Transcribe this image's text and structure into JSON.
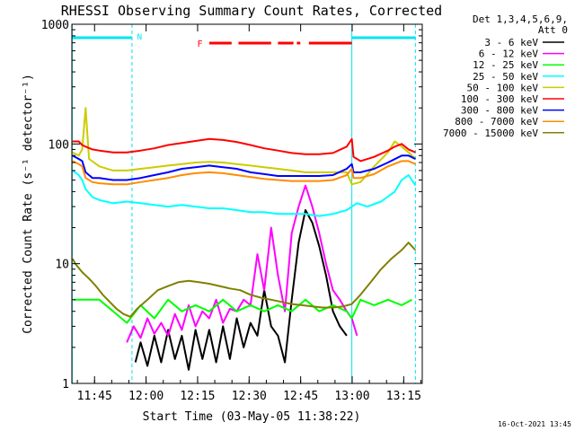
{
  "chart_data": {
    "type": "line",
    "title": "RHESSI Observing Summary Count Rates, Corrected",
    "xlabel": "Start Time (03-May-05 11:38:22)",
    "ylabel": "Corrected Count Rate (s⁻¹ detector⁻¹)",
    "x_unit": "minutes after 11:38:22",
    "xlim": [
      0,
      102
    ],
    "ylim": [
      1,
      1000
    ],
    "yscale": "log",
    "x_ticks": [
      {
        "t": 6.6,
        "label": "11:45"
      },
      {
        "t": 21.6,
        "label": "12:00"
      },
      {
        "t": 36.6,
        "label": "12:15"
      },
      {
        "t": 51.6,
        "label": "12:30"
      },
      {
        "t": 66.6,
        "label": "12:45"
      },
      {
        "t": 81.6,
        "label": "13:00"
      },
      {
        "t": 96.6,
        "label": "13:15"
      }
    ],
    "y_ticks": [
      {
        "v": 1,
        "label": "1"
      },
      {
        "v": 10,
        "label": "10"
      },
      {
        "v": 100,
        "label": "100"
      },
      {
        "v": 1000,
        "label": "1000"
      }
    ],
    "legend_header": [
      "Det 1,3,4,5,6,9,",
      "Att 0"
    ],
    "legend_position": "right",
    "timestamp": "16-Oct-2021 13:45",
    "annotations": {
      "night_segments": [
        [
          0,
          17.5
        ],
        [
          81.5,
          100
        ]
      ],
      "night_label": {
        "text": "N",
        "t": 19
      },
      "flare_label": {
        "text": "F",
        "t": 36.5
      },
      "flare_segments": [
        [
          40,
          46.5
        ],
        [
          48.5,
          58
        ],
        [
          60,
          64.5
        ],
        [
          65.5,
          66.5
        ],
        [
          69,
          81.5
        ]
      ],
      "vertical_lines": [
        {
          "t": 0.1,
          "style": "solid"
        },
        {
          "t": 17.5,
          "style": "dashed"
        },
        {
          "t": 81.5,
          "style": "solid"
        },
        {
          "t": 100,
          "style": "dashed"
        }
      ],
      "night_color": "#00e5ee",
      "flare_color": "#ff0000"
    },
    "series": [
      {
        "name": "3 - 6 keV",
        "color": "#000000",
        "x": [
          18.5,
          20,
          22,
          24,
          26,
          28,
          30,
          32,
          34,
          36,
          38,
          40,
          42,
          44,
          46,
          48,
          50,
          52,
          54,
          56,
          58,
          60,
          62,
          64,
          66,
          68,
          70,
          72,
          74,
          76,
          78,
          80
        ],
        "y": [
          1.5,
          2.2,
          1.4,
          2.5,
          1.5,
          2.8,
          1.6,
          2.5,
          1.3,
          2.8,
          1.6,
          2.8,
          1.5,
          3.0,
          1.6,
          3.5,
          2.0,
          3.2,
          2.5,
          6.0,
          3.0,
          2.5,
          1.5,
          5.0,
          15,
          28,
          22,
          14,
          8,
          4,
          3,
          2.5
        ]
      },
      {
        "name": "6 - 12 keV",
        "color": "#ff00ff",
        "x": [
          16,
          18,
          20,
          22,
          24,
          26,
          28,
          30,
          32,
          34,
          36,
          38,
          40,
          42,
          44,
          46,
          48,
          50,
          52,
          54,
          56,
          58,
          60,
          62,
          64,
          66,
          68,
          70,
          72,
          74,
          76,
          78,
          80,
          81.5,
          83
        ],
        "y": [
          2.2,
          3.0,
          2.4,
          3.5,
          2.6,
          3.2,
          2.5,
          3.8,
          2.8,
          4.5,
          3.0,
          4.0,
          3.5,
          5.0,
          3.2,
          4.2,
          4.0,
          5.0,
          4.5,
          12,
          6.0,
          20,
          8,
          4,
          18,
          30,
          45,
          30,
          18,
          10,
          6,
          5,
          4,
          3.5,
          2.5
        ]
      },
      {
        "name": "12 - 25 keV",
        "color": "#00ff00",
        "x": [
          0.5,
          4,
          8,
          12,
          16,
          20,
          24,
          28,
          32,
          36,
          40,
          44,
          48,
          52,
          56,
          60,
          64,
          68,
          72,
          76,
          80,
          81.5,
          84,
          88,
          92,
          96,
          99
        ],
        "y": [
          5.0,
          5.0,
          5.0,
          4.0,
          3.2,
          4.5,
          3.5,
          5.0,
          4.0,
          4.5,
          4.0,
          5.0,
          4.0,
          4.5,
          4.0,
          4.5,
          4.0,
          5.0,
          4.0,
          4.5,
          4.0,
          3.5,
          5.0,
          4.5,
          5.0,
          4.5,
          5.0
        ]
      },
      {
        "name": "25 - 50 keV",
        "color": "#00ffff",
        "x": [
          0.2,
          2,
          3,
          4,
          6,
          8,
          12,
          16,
          20,
          24,
          28,
          32,
          36,
          40,
          44,
          48,
          52,
          56,
          60,
          64,
          68,
          72,
          76,
          80,
          81.5,
          83,
          86,
          90,
          94,
          96,
          98,
          100
        ],
        "y": [
          60,
          55,
          50,
          42,
          36,
          34,
          32,
          33,
          32,
          31,
          30,
          31,
          30,
          29,
          29,
          28,
          27,
          27,
          26,
          26,
          26,
          25,
          26,
          28,
          30,
          32,
          30,
          33,
          40,
          50,
          55,
          45
        ]
      },
      {
        "name": "50 - 100 keV",
        "color": "#cccc00",
        "x": [
          0.2,
          2,
          3,
          4,
          5,
          8,
          12,
          16,
          20,
          24,
          28,
          32,
          36,
          40,
          44,
          48,
          52,
          56,
          60,
          64,
          68,
          72,
          76,
          80,
          81.5,
          84,
          88,
          92,
          94,
          96,
          98,
          100
        ],
        "y": [
          85,
          80,
          90,
          200,
          75,
          65,
          60,
          60,
          62,
          64,
          66,
          68,
          70,
          71,
          70,
          68,
          66,
          64,
          62,
          60,
          58,
          58,
          58,
          58,
          46,
          48,
          65,
          85,
          105,
          95,
          85,
          75
        ]
      },
      {
        "name": "100 - 300 keV",
        "color": "#ff0000",
        "x": [
          0.2,
          2,
          3,
          4,
          6,
          8,
          12,
          16,
          20,
          24,
          28,
          32,
          36,
          40,
          44,
          48,
          52,
          56,
          60,
          64,
          68,
          72,
          76,
          80,
          81.5,
          82,
          84,
          88,
          92,
          94,
          96,
          98,
          100
        ],
        "y": [
          105,
          105,
          98,
          95,
          90,
          88,
          85,
          85,
          88,
          92,
          98,
          102,
          106,
          110,
          108,
          104,
          98,
          92,
          88,
          84,
          82,
          82,
          84,
          95,
          110,
          78,
          72,
          78,
          88,
          95,
          100,
          90,
          85
        ]
      },
      {
        "name": "300 - 800 keV",
        "color": "#0000ff",
        "x": [
          0.2,
          2,
          3,
          4,
          6,
          8,
          12,
          16,
          20,
          24,
          28,
          32,
          36,
          40,
          44,
          48,
          52,
          56,
          60,
          64,
          68,
          72,
          76,
          80,
          81.5,
          82,
          84,
          88,
          92,
          96,
          98,
          100
        ],
        "y": [
          80,
          75,
          72,
          58,
          52,
          52,
          50,
          50,
          52,
          55,
          58,
          62,
          64,
          66,
          64,
          62,
          58,
          56,
          54,
          54,
          54,
          54,
          55,
          62,
          68,
          58,
          58,
          62,
          70,
          80,
          80,
          75
        ]
      },
      {
        "name": "800 - 7000 keV",
        "color": "#ff8c00",
        "x": [
          0.2,
          2,
          3,
          4,
          6,
          8,
          12,
          16,
          20,
          24,
          28,
          32,
          36,
          40,
          44,
          48,
          52,
          56,
          60,
          64,
          68,
          72,
          76,
          80,
          81.5,
          82,
          84,
          88,
          92,
          96,
          98,
          100
        ],
        "y": [
          72,
          68,
          65,
          52,
          48,
          47,
          46,
          46,
          48,
          50,
          52,
          55,
          57,
          58,
          57,
          55,
          53,
          51,
          50,
          49,
          49,
          49,
          50,
          55,
          62,
          52,
          52,
          56,
          65,
          72,
          72,
          68
        ]
      },
      {
        "name": "7000 - 15000 keV",
        "color": "#808000",
        "x": [
          0.2,
          1,
          3,
          5,
          7,
          9,
          11,
          13,
          15,
          17,
          19,
          22,
          25,
          28,
          31,
          34,
          37,
          40,
          43,
          46,
          49,
          52,
          55,
          58,
          61,
          64,
          67,
          70,
          73,
          76,
          79,
          81.5,
          84,
          87,
          90,
          93,
          96,
          98,
          100
        ],
        "y": [
          11,
          10,
          8.5,
          7.5,
          6.5,
          5.5,
          4.8,
          4.2,
          3.8,
          3.6,
          4.2,
          5.0,
          6.0,
          6.5,
          7.0,
          7.2,
          7.0,
          6.8,
          6.5,
          6.2,
          6.0,
          5.5,
          5.2,
          5.0,
          4.8,
          4.6,
          4.5,
          4.4,
          4.3,
          4.3,
          4.4,
          4.6,
          5.5,
          7.0,
          9.0,
          11,
          13,
          15,
          13
        ]
      }
    ]
  }
}
